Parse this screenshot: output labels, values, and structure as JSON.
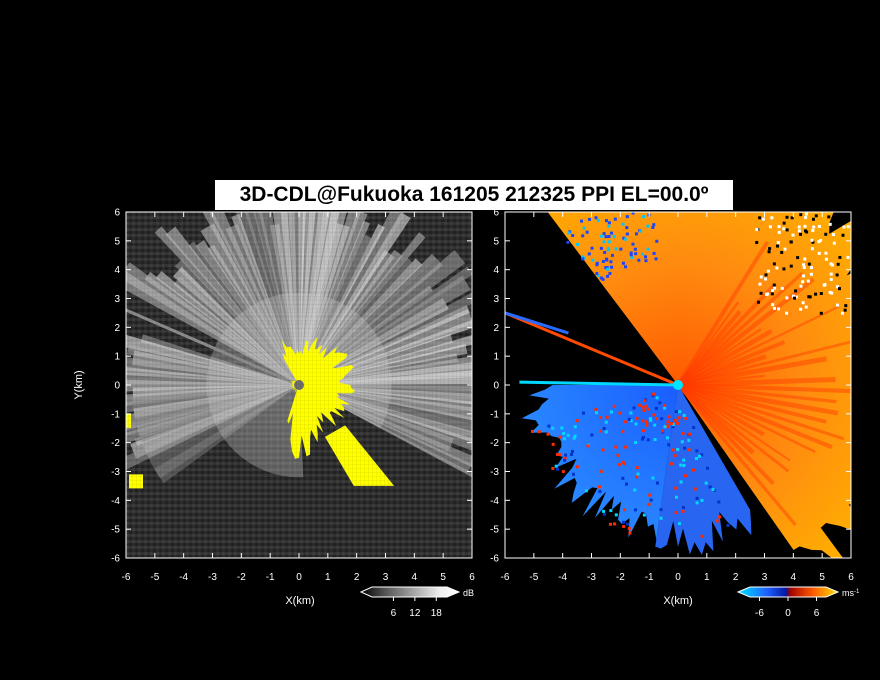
{
  "title": "3D-CDL@Fukuoka 161205 212325 PPI EL=00.0º",
  "colors": {
    "background": "#000000",
    "frame": "#ffffff",
    "reflectivity_high": "#ffff00",
    "doppler_approach": "#0055ff",
    "doppler_recede": "#ff7a00",
    "doppler_center": "#00e5ff"
  },
  "chart_data": [
    {
      "type": "heatmap",
      "panel": "left",
      "quantity": "reflectivity",
      "xlabel": "X(km)",
      "ylabel": "Y(km)",
      "xlim": [
        -6,
        6
      ],
      "ylim": [
        -6,
        6
      ],
      "x_ticks": [
        "-6",
        "-5",
        "-4",
        "-3",
        "-2",
        "-1",
        "0",
        "1",
        "2",
        "3",
        "4",
        "5",
        "6"
      ],
      "y_ticks": [
        "6",
        "5",
        "4",
        "3",
        "2",
        "1",
        "0",
        "-1",
        "-2",
        "-3",
        "-4",
        "-5",
        "-6"
      ],
      "colorbar": {
        "unit": "dB",
        "ticks": [
          "6",
          "12",
          "18"
        ],
        "range": [
          0,
          21
        ]
      },
      "echo_region_km": {
        "radius_high": 1.0,
        "direction": "east"
      }
    },
    {
      "type": "heatmap",
      "panel": "right",
      "quantity": "doppler_velocity",
      "xlabel": "X(km)",
      "ylabel": "",
      "xlim": [
        -6,
        6
      ],
      "ylim": [
        -6,
        6
      ],
      "x_ticks": [
        "-6",
        "-5",
        "-4",
        "-3",
        "-2",
        "-1",
        "0",
        "1",
        "2",
        "3",
        "4",
        "5",
        "6"
      ],
      "y_ticks": [
        "6",
        "5",
        "4",
        "3",
        "2",
        "1",
        "0",
        "-1",
        "-2",
        "-3",
        "-4",
        "-5",
        "-6"
      ],
      "colorbar": {
        "unit": "ms",
        "unit_exp": "-1",
        "ticks": [
          "-6",
          "0",
          "6"
        ],
        "range": [
          -8,
          8
        ]
      }
    }
  ]
}
